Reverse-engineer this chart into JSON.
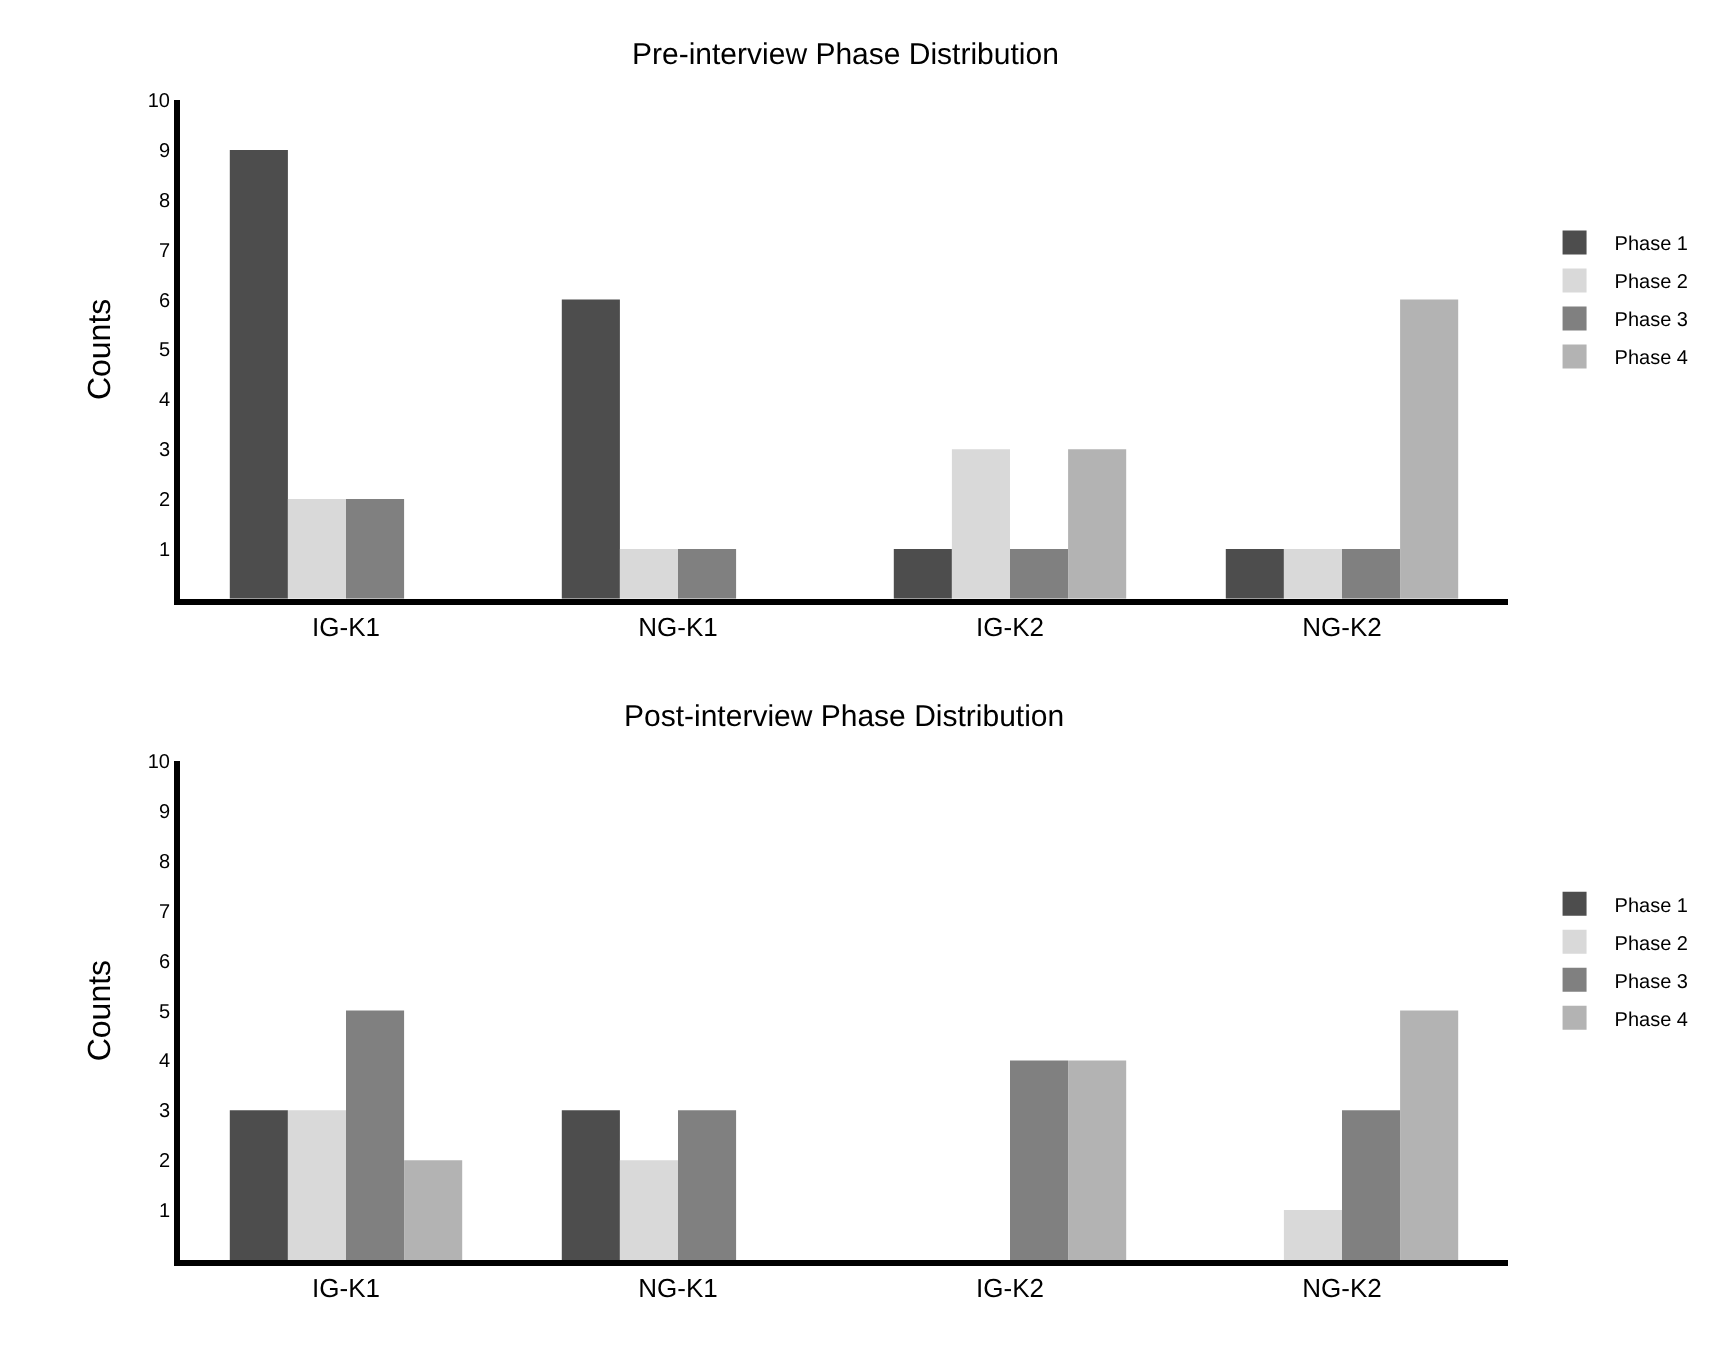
{
  "chart_data": [
    {
      "type": "bar",
      "title": "Pre-interview Phase Distribution",
      "ylabel": "Counts",
      "categories": [
        "IG-K1",
        "NG-K1",
        "IG-K2",
        "NG-K2"
      ],
      "ylim": [
        0,
        10
      ],
      "yticks": [
        1,
        2,
        3,
        4,
        5,
        6,
        7,
        8,
        9,
        10
      ],
      "legend": "right",
      "series": [
        {
          "name": "Phase 1",
          "color": "#4d4d4d",
          "values": [
            9,
            6,
            1,
            1
          ]
        },
        {
          "name": "Phase 2",
          "color": "#d9d9d9",
          "values": [
            2,
            1,
            3,
            1
          ]
        },
        {
          "name": "Phase 3",
          "color": "#808080",
          "values": [
            2,
            1,
            1,
            1
          ]
        },
        {
          "name": "Phase 4",
          "color": "#b3b3b3",
          "values": [
            0,
            0,
            3,
            6
          ]
        }
      ]
    },
    {
      "type": "bar",
      "title": "Post-interview Phase Distribution",
      "ylabel": "Counts",
      "categories": [
        "IG-K1",
        "NG-K1",
        "IG-K2",
        "NG-K2"
      ],
      "ylim": [
        0,
        10
      ],
      "yticks": [
        1,
        2,
        3,
        4,
        5,
        6,
        7,
        8,
        9,
        10
      ],
      "legend": "right",
      "series": [
        {
          "name": "Phase 1",
          "color": "#4d4d4d",
          "values": [
            3,
            3,
            0,
            0
          ]
        },
        {
          "name": "Phase 2",
          "color": "#d9d9d9",
          "values": [
            3,
            2,
            0,
            1
          ]
        },
        {
          "name": "Phase 3",
          "color": "#808080",
          "values": [
            5,
            3,
            4,
            3
          ]
        },
        {
          "name": "Phase 4",
          "color": "#b3b3b3",
          "values": [
            2,
            0,
            4,
            5
          ]
        }
      ]
    }
  ]
}
